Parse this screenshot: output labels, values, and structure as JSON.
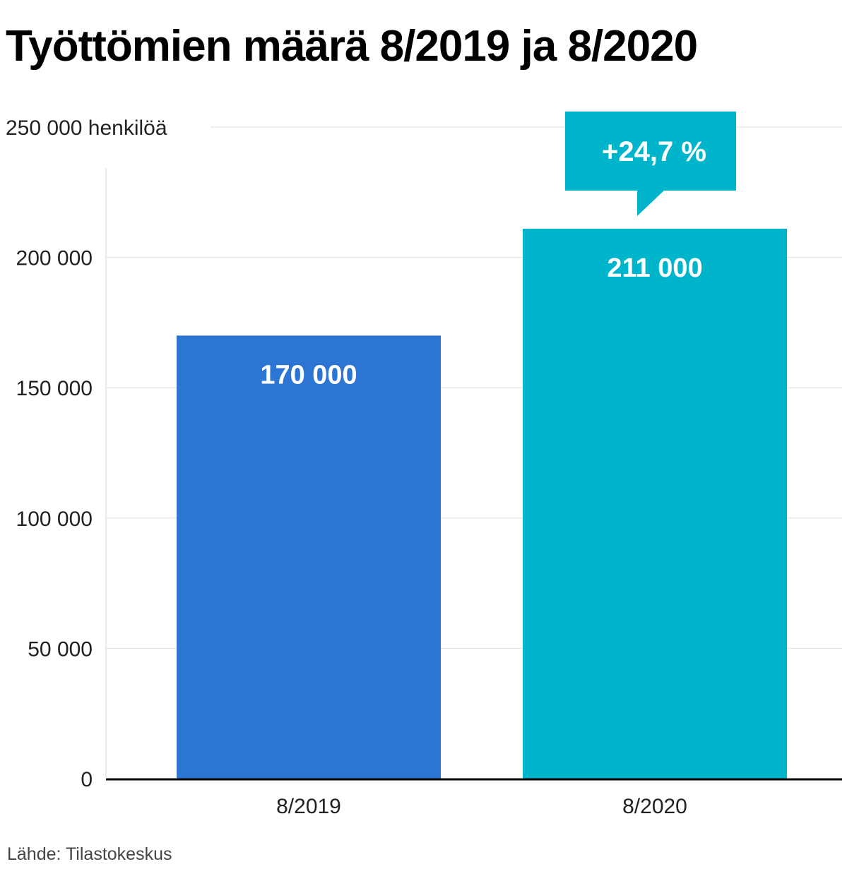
{
  "title": "Työttömien määrä 8/2019 ja 8/2020",
  "source": "Lähde: Tilastokeskus",
  "colors": {
    "bar_2019": "#2c75d3",
    "bar_2020": "#00b5cb",
    "callout": "#00b5cb",
    "grid": "#e0e0e0",
    "axis": "#000000"
  },
  "chart_data": {
    "type": "bar",
    "categories": [
      "8/2019",
      "8/2020"
    ],
    "values": [
      170000,
      211000
    ],
    "data_labels": [
      "170 000",
      "211 000"
    ],
    "ylim": [
      0,
      250000
    ],
    "yticks": [
      {
        "value": 0,
        "label": "0"
      },
      {
        "value": 50000,
        "label": "50 000"
      },
      {
        "value": 100000,
        "label": "100 000"
      },
      {
        "value": 150000,
        "label": "150 000"
      },
      {
        "value": 200000,
        "label": "200 000"
      },
      {
        "value": 250000,
        "label": "250 000 henkilöä"
      }
    ],
    "annotation": {
      "text": "+24,7 %",
      "category": "8/2020"
    },
    "grid": true
  }
}
